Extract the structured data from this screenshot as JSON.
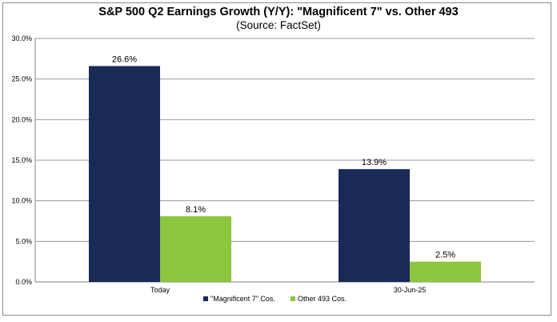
{
  "chart_data": {
    "type": "bar",
    "title": "S&P 500 Q2 Earnings Growth (Y/Y): \"Magnificent 7\" vs. Other 493",
    "subtitle": "(Source: FactSet)",
    "categories": [
      "Today",
      "30-Jun-25"
    ],
    "series": [
      {
        "name": "\"Magnificent 7\" Cos.",
        "values": [
          26.6,
          13.9
        ],
        "labels": [
          "26.6%",
          "13.9%"
        ],
        "color": "#1a2a57"
      },
      {
        "name": "Other 493 Cos.",
        "values": [
          8.1,
          2.5
        ],
        "labels": [
          "8.1%",
          "2.5%"
        ],
        "color": "#8dc63f"
      }
    ],
    "ylim": [
      0,
      30
    ],
    "yticks": [
      0,
      5,
      10,
      15,
      20,
      25,
      30
    ],
    "ytick_labels": [
      "0.0%",
      "5.0%",
      "10.0%",
      "15.0%",
      "20.0%",
      "25.0%",
      "30.0%"
    ],
    "xlabel": "",
    "ylabel": "",
    "grid": true,
    "legend_position": "bottom"
  },
  "colors": {
    "grid": "#9a9a9a",
    "axis": "#808080"
  }
}
